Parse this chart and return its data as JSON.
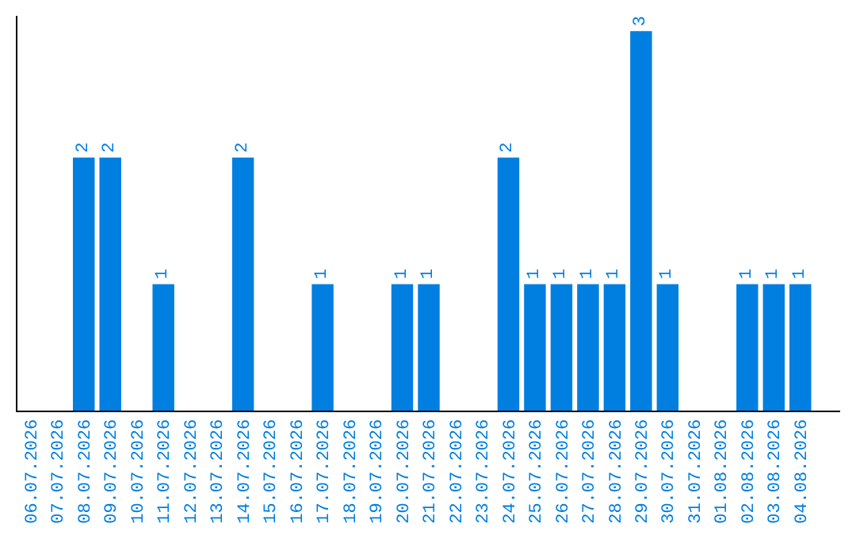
{
  "chart_data": {
    "type": "bar",
    "categories": [
      "06.07.2026",
      "07.07.2026",
      "08.07.2026",
      "09.07.2026",
      "10.07.2026",
      "11.07.2026",
      "12.07.2026",
      "13.07.2026",
      "14.07.2026",
      "15.07.2026",
      "16.07.2026",
      "17.07.2026",
      "18.07.2026",
      "19.07.2026",
      "20.07.2026",
      "21.07.2026",
      "22.07.2026",
      "23.07.2026",
      "24.07.2026",
      "25.07.2026",
      "26.07.2026",
      "27.07.2026",
      "28.07.2026",
      "29.07.2026",
      "30.07.2026",
      "31.07.2026",
      "01.08.2026",
      "02.08.2026",
      "03.08.2026",
      "04.08.2026"
    ],
    "values": [
      0,
      0,
      2,
      2,
      0,
      1,
      0,
      0,
      2,
      0,
      0,
      1,
      0,
      0,
      1,
      1,
      0,
      0,
      2,
      1,
      1,
      1,
      1,
      3,
      1,
      0,
      0,
      1,
      1,
      1
    ],
    "value_labels": [
      null,
      null,
      "2",
      "2",
      null,
      "1",
      null,
      null,
      "2",
      null,
      null,
      "1",
      null,
      null,
      "1",
      "1",
      null,
      null,
      "2",
      "1",
      "1",
      "1",
      "1",
      "3",
      "1",
      null,
      null,
      "1",
      "1",
      "1"
    ],
    "color": "#007fe0"
  }
}
